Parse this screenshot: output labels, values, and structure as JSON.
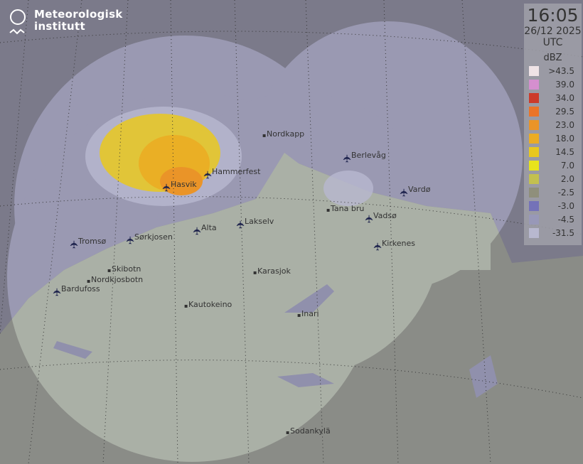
{
  "logo": {
    "line1": "Meteorologisk",
    "line2": "institutt"
  },
  "timestamp": {
    "time": "16:05",
    "date": "26/12 2025",
    "zone": "UTC"
  },
  "legend": {
    "unit": "dBZ",
    "items": [
      {
        "label": ">43.5",
        "color": "#efe3e6"
      },
      {
        "label": "39.0",
        "color": "#d58fcf"
      },
      {
        "label": "34.0",
        "color": "#cc3a2a"
      },
      {
        "label": "29.5",
        "color": "#ea7428"
      },
      {
        "label": "23.0",
        "color": "#ea9428"
      },
      {
        "label": "18.0",
        "color": "#ebac24"
      },
      {
        "label": "14.5",
        "color": "#e9c81e"
      },
      {
        "label": "7.0",
        "color": "#e8e41c"
      },
      {
        "label": "2.0",
        "color": "#c3c04f"
      },
      {
        "label": "-2.5",
        "color": "#8f8f7b"
      },
      {
        "label": "-3.0",
        "color": "#7472b8"
      },
      {
        "label": "-4.5",
        "color": "#9898b8"
      },
      {
        "label": "-31.5",
        "color": "#b8b8cf"
      }
    ]
  },
  "places": [
    "Nordkapp",
    "Berlevåg",
    "Hammerfest",
    "Hasvik",
    "Vardø",
    "Tana bru",
    "Vadsø",
    "Lakselv",
    "Alta",
    "Sørkjosen",
    "Tromsø",
    "Kirkenes",
    "Skibotn",
    "Nordkjosbotn",
    "Karasjok",
    "Bardufoss",
    "Kautokeino",
    "Inari",
    "Sodankylä"
  ],
  "colors": {
    "background": "#7b7a8a",
    "coverage": "#9a99b2",
    "land": "#aab0a6",
    "land_outside": "#8a8c87",
    "water_radar": "#9090ac"
  }
}
